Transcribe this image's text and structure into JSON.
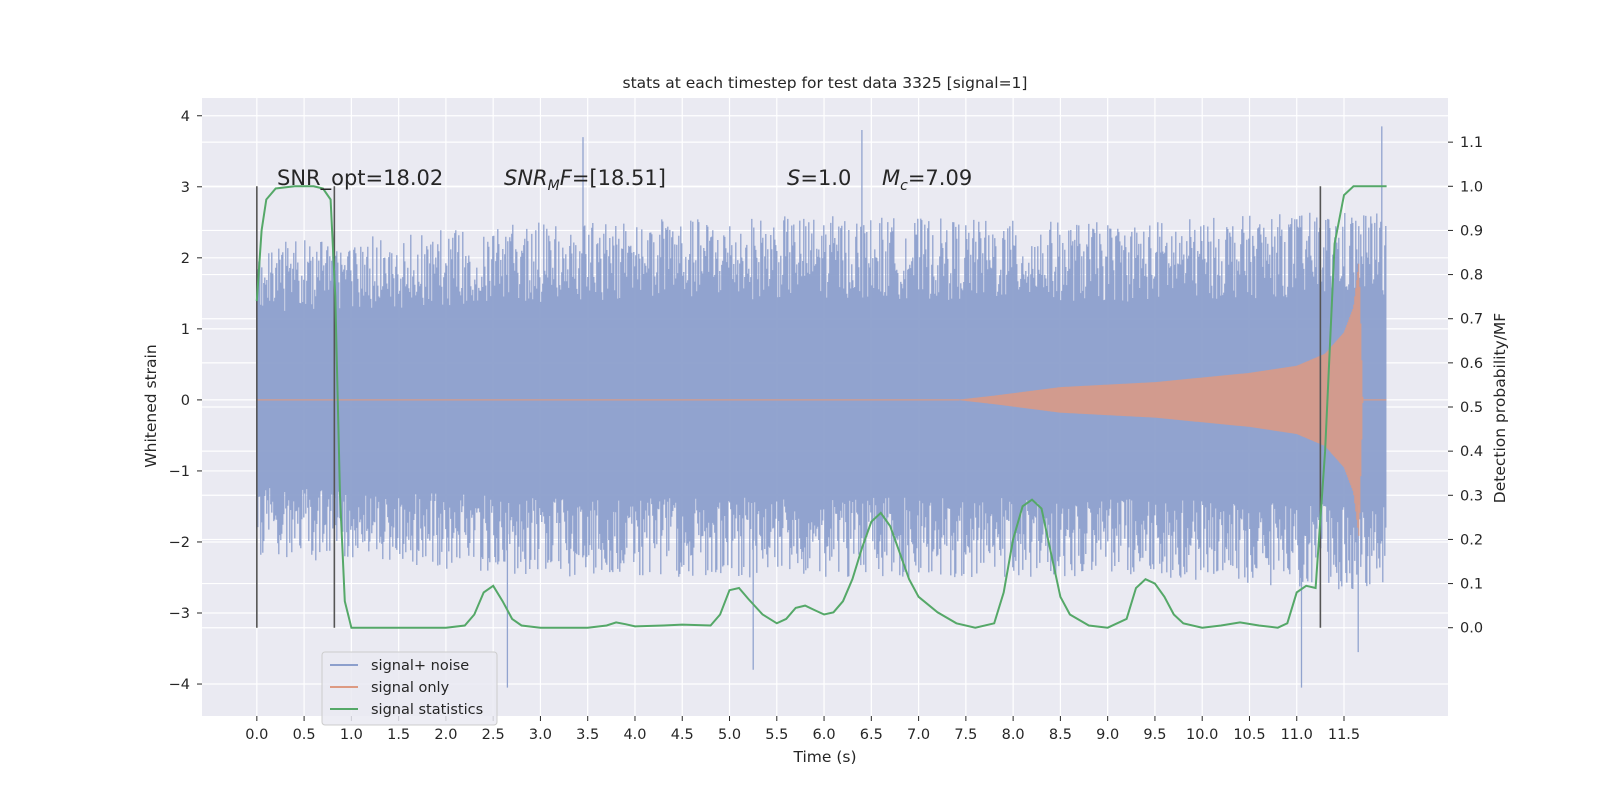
{
  "chart_data": {
    "type": "line",
    "title": "stats at each timestep for test data 3325 [signal=1]",
    "xlabel": "Time (s)",
    "ylabel": "Whitened strain",
    "ylabel_right": "Detection probability/MF",
    "xlim": [
      -0.58,
      12.6
    ],
    "ylim": [
      -4.45,
      4.25
    ],
    "ylim_right": [
      -0.2,
      1.2
    ],
    "x_ticks": [
      "0.0",
      "0.5",
      "1.0",
      "1.5",
      "2.0",
      "2.5",
      "3.0",
      "3.5",
      "4.0",
      "4.5",
      "5.0",
      "5.5",
      "6.0",
      "6.5",
      "7.0",
      "7.5",
      "8.0",
      "8.5",
      "9.0",
      "9.5",
      "10.0",
      "10.5",
      "11.0",
      "11.5"
    ],
    "y_ticks": [
      "4",
      "3",
      "2",
      "1",
      "0",
      "−1",
      "−2",
      "−3",
      "−4"
    ],
    "y_ticks_right": [
      "1.1",
      "1.0",
      "0.9",
      "0.8",
      "0.7",
      "0.6",
      "0.5",
      "0.4",
      "0.3",
      "0.2",
      "0.1",
      "0.0"
    ],
    "grid": true,
    "legend_position": "bottom-left",
    "annotations": {
      "snr_opt": "SNR_opt=18.02",
      "snr_mf_value": "=[18.51]",
      "s_value": "=1.0",
      "mc_value": "=7.09"
    },
    "vertical_markers_x": [
      0.0,
      0.82,
      11.25
    ],
    "series": [
      {
        "name": "signal+ noise",
        "color": "#8c9fcc",
        "kind": "noise band",
        "x_range": [
          0.0,
          11.95
        ],
        "envelope_upper_approx": [
          [
            0.0,
            2.2
          ],
          [
            3.0,
            2.5
          ],
          [
            6.0,
            2.6
          ],
          [
            9.0,
            2.5
          ],
          [
            11.95,
            2.7
          ]
        ],
        "envelope_lower_approx": [
          [
            0.0,
            -2.2
          ],
          [
            3.0,
            -2.5
          ],
          [
            6.0,
            -2.5
          ],
          [
            9.0,
            -2.5
          ],
          [
            11.95,
            -2.7
          ]
        ],
        "spike_extrema": [
          [
            3.45,
            3.7
          ],
          [
            6.4,
            3.8
          ],
          [
            11.9,
            3.85
          ],
          [
            2.65,
            -4.05
          ],
          [
            11.05,
            -4.05
          ],
          [
            5.25,
            -3.8
          ],
          [
            11.65,
            -3.55
          ]
        ]
      },
      {
        "name": "signal only",
        "color": "#dd9a82",
        "kind": "chirp",
        "x_range": [
          0.0,
          11.95
        ],
        "envelope": [
          [
            0.0,
            0.0
          ],
          [
            7.4,
            0.0
          ],
          [
            7.8,
            0.06
          ],
          [
            8.5,
            0.18
          ],
          [
            9.5,
            0.25
          ],
          [
            10.5,
            0.38
          ],
          [
            11.0,
            0.48
          ],
          [
            11.3,
            0.65
          ],
          [
            11.5,
            0.95
          ],
          [
            11.6,
            1.3
          ],
          [
            11.66,
            1.95
          ],
          [
            11.7,
            0.0
          ],
          [
            11.95,
            0.0
          ]
        ]
      },
      {
        "name": "signal statistics",
        "color": "#55a868",
        "axis": "right",
        "x": [
          0.0,
          0.05,
          0.1,
          0.2,
          0.4,
          0.6,
          0.7,
          0.78,
          0.83,
          0.88,
          0.93,
          1.0,
          1.5,
          2.0,
          2.2,
          2.3,
          2.4,
          2.5,
          2.6,
          2.7,
          2.8,
          3.0,
          3.5,
          3.7,
          3.8,
          3.9,
          4.0,
          4.3,
          4.5,
          4.8,
          4.9,
          5.0,
          5.1,
          5.2,
          5.35,
          5.5,
          5.6,
          5.7,
          5.8,
          5.9,
          6.0,
          6.1,
          6.2,
          6.3,
          6.4,
          6.5,
          6.6,
          6.7,
          6.8,
          6.9,
          7.0,
          7.2,
          7.4,
          7.6,
          7.8,
          7.9,
          8.0,
          8.1,
          8.2,
          8.3,
          8.4,
          8.5,
          8.6,
          8.8,
          9.0,
          9.2,
          9.3,
          9.4,
          9.5,
          9.6,
          9.7,
          9.8,
          10.0,
          10.2,
          10.4,
          10.6,
          10.8,
          10.9,
          11.0,
          11.1,
          11.2,
          11.3,
          11.4,
          11.5,
          11.6,
          11.95
        ],
        "y": [
          0.74,
          0.9,
          0.97,
          0.995,
          1.0,
          1.0,
          0.995,
          0.97,
          0.75,
          0.3,
          0.06,
          0.0,
          0.0,
          0.0,
          0.005,
          0.03,
          0.08,
          0.095,
          0.06,
          0.02,
          0.005,
          0.0,
          0.0,
          0.005,
          0.012,
          0.008,
          0.003,
          0.005,
          0.007,
          0.005,
          0.03,
          0.085,
          0.09,
          0.065,
          0.03,
          0.01,
          0.02,
          0.045,
          0.05,
          0.04,
          0.03,
          0.035,
          0.06,
          0.11,
          0.18,
          0.24,
          0.26,
          0.23,
          0.17,
          0.11,
          0.07,
          0.035,
          0.01,
          0.0,
          0.01,
          0.08,
          0.2,
          0.275,
          0.29,
          0.27,
          0.17,
          0.07,
          0.03,
          0.005,
          0.0,
          0.02,
          0.09,
          0.11,
          0.1,
          0.07,
          0.03,
          0.01,
          0.0,
          0.005,
          0.012,
          0.005,
          0.0,
          0.01,
          0.08,
          0.095,
          0.09,
          0.4,
          0.87,
          0.98,
          1.0,
          1.0
        ]
      }
    ]
  }
}
